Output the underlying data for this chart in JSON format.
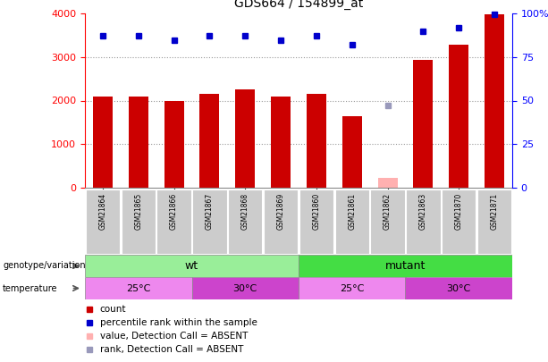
{
  "title": "GDS664 / 154899_at",
  "samples": [
    "GSM21864",
    "GSM21865",
    "GSM21866",
    "GSM21867",
    "GSM21868",
    "GSM21869",
    "GSM21860",
    "GSM21861",
    "GSM21862",
    "GSM21863",
    "GSM21870",
    "GSM21871"
  ],
  "counts": [
    2100,
    2100,
    1980,
    2150,
    2250,
    2100,
    2150,
    1650,
    null,
    2930,
    3280,
    3980
  ],
  "ranks": [
    3480,
    3480,
    3380,
    3480,
    3480,
    3380,
    3480,
    3290,
    null,
    3580,
    3680,
    3980
  ],
  "absent_value": [
    null,
    null,
    null,
    null,
    null,
    null,
    null,
    null,
    220,
    null,
    null,
    null
  ],
  "absent_rank": [
    null,
    null,
    null,
    null,
    null,
    null,
    null,
    null,
    1880,
    null,
    null,
    null
  ],
  "ylim_left": [
    0,
    4000
  ],
  "ylim_right": [
    0,
    100
  ],
  "yticks_left": [
    0,
    1000,
    2000,
    3000,
    4000
  ],
  "yticks_right": [
    0,
    25,
    50,
    75,
    100
  ],
  "bar_color": "#cc0000",
  "rank_color": "#0000cc",
  "absent_bar_color": "#ffb0b0",
  "absent_rank_color": "#9999bb",
  "grid_color": "#999999",
  "wt_color": "#99ee99",
  "mutant_color": "#44dd44",
  "temp25_color": "#ee88ee",
  "temp30_color": "#cc44cc",
  "label_bg_color": "#cccccc",
  "legend_items": [
    {
      "label": "count",
      "color": "#cc0000"
    },
    {
      "label": "percentile rank within the sample",
      "color": "#0000cc"
    },
    {
      "label": "value, Detection Call = ABSENT",
      "color": "#ffb0b0"
    },
    {
      "label": "rank, Detection Call = ABSENT",
      "color": "#9999bb"
    }
  ]
}
